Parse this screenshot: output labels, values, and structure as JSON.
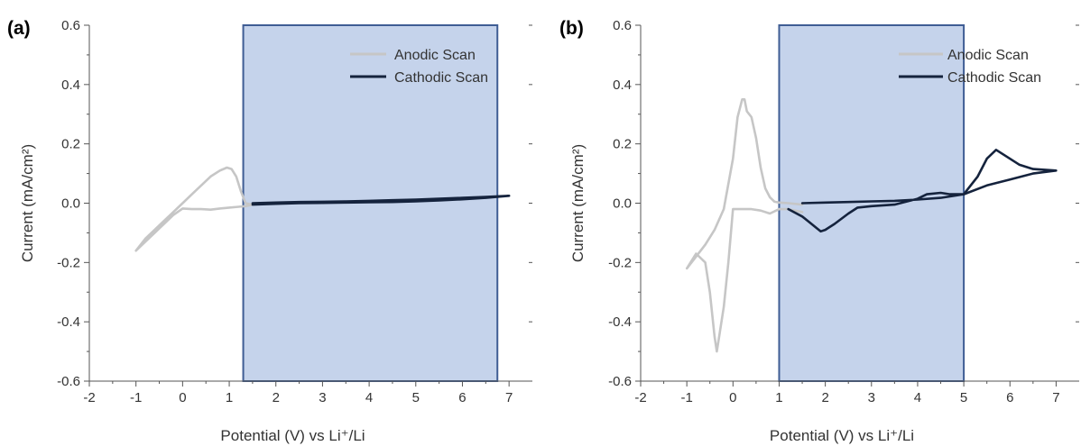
{
  "panels": [
    {
      "panel_label": "(a)",
      "legend": [
        "Anodic Scan",
        "Cathodic Scan"
      ]
    },
    {
      "panel_label": "(b)",
      "legend": [
        "Anodic Scan",
        "Cathodic Scan"
      ]
    }
  ],
  "colors": {
    "anodic": "#c6c6c6",
    "cathodic": "#15233d",
    "window_fill": "#c5d3eb",
    "window_edge": "#3f5d94",
    "axis": "#555555"
  },
  "chart_data": [
    {
      "type": "line",
      "title": "",
      "xlabel": "Potential (V) vs Li⁺/Li",
      "ylabel": "Current (mA/cm²)",
      "xlim": [
        -2,
        7.5
      ],
      "ylim": [
        -0.6,
        0.6
      ],
      "xticks": [
        -2,
        -1,
        0,
        1,
        2,
        3,
        4,
        5,
        6,
        7
      ],
      "yticks": [
        -0.6,
        -0.4,
        -0.2,
        0.0,
        0.2,
        0.4,
        0.6
      ],
      "ytick_labels": [
        "-0.6",
        "-0.4",
        "-0.2",
        "0.0",
        "0.2",
        "0.4",
        "0.6"
      ],
      "grid": false,
      "legend_position": "top-right",
      "stability_window": [
        1.3,
        6.75
      ],
      "series": [
        {
          "name": "Anodic Scan",
          "color": "#c6c6c6",
          "x": [
            -1.0,
            -0.8,
            -0.6,
            -0.4,
            -0.2,
            0.0,
            0.2,
            0.4,
            0.6,
            0.8,
            0.95,
            1.05,
            1.15,
            1.25,
            1.35,
            1.5,
            1.35,
            1.2,
            1.0,
            0.8,
            0.6,
            0.4,
            0.2,
            0.0,
            -0.2,
            -0.4,
            -0.6,
            -0.8,
            -1.0
          ],
          "y": [
            -0.16,
            -0.12,
            -0.09,
            -0.06,
            -0.03,
            0.0,
            0.03,
            0.06,
            0.09,
            0.11,
            0.12,
            0.115,
            0.09,
            0.04,
            0.0,
            -0.005,
            -0.01,
            -0.012,
            -0.015,
            -0.018,
            -0.022,
            -0.02,
            -0.02,
            -0.018,
            -0.04,
            -0.07,
            -0.1,
            -0.13,
            -0.16
          ]
        },
        {
          "name": "Cathodic Scan",
          "color": "#15233d",
          "x": [
            1.5,
            2.0,
            2.5,
            3.0,
            3.5,
            4.0,
            4.5,
            5.0,
            5.5,
            6.0,
            6.5,
            7.0,
            6.5,
            6.0,
            5.5,
            5.0,
            4.5,
            4.0,
            3.5,
            3.0,
            2.5,
            2.0,
            1.5
          ],
          "y": [
            0.0,
            0.002,
            0.004,
            0.005,
            0.006,
            0.008,
            0.01,
            0.012,
            0.015,
            0.018,
            0.021,
            0.025,
            0.018,
            0.013,
            0.009,
            0.006,
            0.004,
            0.003,
            0.002,
            0.001,
            0.0,
            -0.002,
            -0.005
          ]
        }
      ]
    },
    {
      "type": "line",
      "title": "",
      "xlabel": "Potential (V) vs Li⁺/Li",
      "ylabel": "Current (mA/cm²)",
      "xlim": [
        -2,
        7.5
      ],
      "ylim": [
        -0.6,
        0.6
      ],
      "xticks": [
        -2,
        -1,
        0,
        1,
        2,
        3,
        4,
        5,
        6,
        7
      ],
      "yticks": [
        -0.6,
        -0.4,
        -0.2,
        0.0,
        0.2,
        0.4,
        0.6
      ],
      "ytick_labels": [
        "-0.6",
        "-0.4",
        "-0.2",
        "0.0",
        "0.2",
        "0.4",
        "0.6"
      ],
      "grid": false,
      "legend_position": "top-right",
      "stability_window": [
        1.0,
        5.0
      ],
      "series": [
        {
          "name": "Anodic Scan",
          "color": "#c6c6c6",
          "x": [
            1.5,
            1.2,
            1.0,
            0.8,
            0.6,
            0.4,
            0.2,
            0.1,
            0.05,
            0.0,
            -0.1,
            -0.2,
            -0.3,
            -0.35,
            -0.4,
            -0.5,
            -0.6,
            -0.8,
            -1.0,
            -0.8,
            -0.6,
            -0.4,
            -0.2,
            0.0,
            0.1,
            0.2,
            0.25,
            0.3,
            0.4,
            0.5,
            0.6,
            0.7,
            0.8,
            0.9,
            1.0,
            1.2,
            1.5
          ],
          "y": [
            -0.03,
            -0.02,
            -0.02,
            -0.035,
            -0.025,
            -0.02,
            -0.02,
            -0.02,
            -0.02,
            -0.02,
            -0.2,
            -0.35,
            -0.45,
            -0.5,
            -0.45,
            -0.3,
            -0.2,
            -0.17,
            -0.22,
            -0.18,
            -0.14,
            -0.09,
            -0.02,
            0.15,
            0.29,
            0.35,
            0.35,
            0.31,
            0.29,
            0.22,
            0.12,
            0.05,
            0.02,
            0.005,
            0.002,
            0.0,
            -0.005
          ]
        },
        {
          "name": "Cathodic Scan",
          "color": "#15233d",
          "x": [
            1.5,
            2.0,
            2.5,
            3.0,
            3.5,
            4.0,
            4.5,
            5.0,
            5.3,
            5.5,
            5.7,
            5.9,
            6.2,
            6.5,
            7.0,
            6.5,
            6.0,
            5.5,
            5.0,
            4.7,
            4.5,
            4.2,
            4.0,
            3.5,
            3.0,
            2.7,
            2.5,
            2.2,
            2.0,
            1.9,
            1.7,
            1.5,
            1.2
          ],
          "y": [
            0.0,
            0.002,
            0.004,
            0.006,
            0.008,
            0.012,
            0.018,
            0.03,
            0.09,
            0.15,
            0.18,
            0.16,
            0.13,
            0.115,
            0.11,
            0.1,
            0.08,
            0.06,
            0.03,
            0.03,
            0.035,
            0.03,
            0.015,
            -0.005,
            -0.01,
            -0.015,
            -0.035,
            -0.07,
            -0.09,
            -0.095,
            -0.07,
            -0.045,
            -0.02
          ]
        }
      ]
    }
  ]
}
